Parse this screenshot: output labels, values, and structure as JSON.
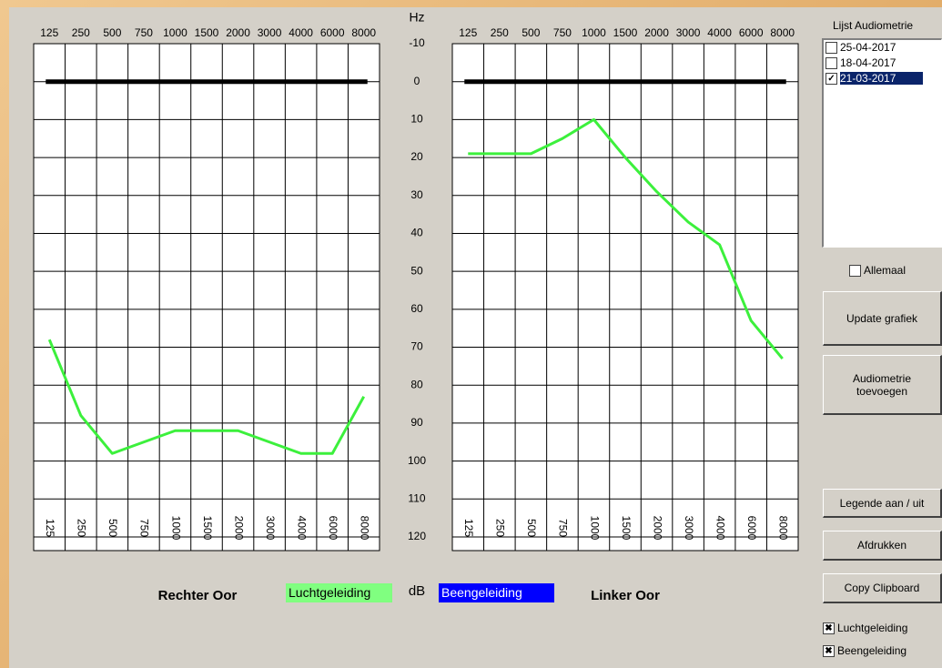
{
  "chart_data": [
    {
      "type": "line",
      "title": "Rechter Oor",
      "x_axis_label": "Hz",
      "y_axis_label": "dB",
      "categories": [
        "125",
        "250",
        "500",
        "750",
        "1000",
        "1500",
        "2000",
        "3000",
        "4000",
        "6000",
        "8000"
      ],
      "series": [
        {
          "color": "#000000",
          "values": [
            0,
            0,
            0,
            0,
            0,
            0,
            0,
            0,
            0,
            0,
            0
          ]
        },
        {
          "color": "#3cf03c",
          "values": [
            68,
            88,
            98,
            95,
            92,
            92,
            92,
            95,
            98,
            98,
            83
          ]
        }
      ],
      "ylim": [
        -10,
        120
      ],
      "yticks": [
        -10,
        0,
        10,
        20,
        30,
        40,
        50,
        60,
        70,
        80,
        90,
        100,
        110,
        120
      ],
      "y_inverted": true,
      "grid": true
    },
    {
      "type": "line",
      "title": "Linker Oor",
      "categories": [
        "125",
        "250",
        "500",
        "750",
        "1000",
        "1500",
        "2000",
        "3000",
        "4000",
        "6000",
        "8000"
      ],
      "series": [
        {
          "color": "#000000",
          "values": [
            0,
            0,
            0,
            0,
            0,
            0,
            0,
            0,
            0,
            0,
            0
          ]
        },
        {
          "color": "#3cf03c",
          "values": [
            19,
            19,
            19,
            15,
            10,
            20,
            29,
            37,
            43,
            63,
            73
          ]
        }
      ],
      "ylim": [
        -10,
        120
      ],
      "yticks": [
        -10,
        0,
        10,
        20,
        30,
        40,
        50,
        60,
        70,
        80,
        90,
        100,
        110,
        120
      ],
      "y_inverted": true,
      "grid": true
    }
  ],
  "legend": [
    {
      "label": "Luchtgeleiding",
      "color": "#80ff80",
      "text_color": "#000000"
    },
    {
      "label": "Beengeleiding",
      "color": "#0000ff",
      "text_color": "#ffffff"
    }
  ],
  "panel": {
    "list_title": "Lijst Audiometrie",
    "list_items": [
      {
        "label": "25-04-2017",
        "checked": false,
        "selected": false
      },
      {
        "label": "18-04-2017",
        "checked": false,
        "selected": false
      },
      {
        "label": "21-03-2017",
        "checked": true,
        "selected": true
      }
    ],
    "all_checkbox": {
      "label": "Allemaal",
      "checked": false
    },
    "buttons": [
      "Update grafiek",
      "Audiometrie toevoegen",
      "Legende aan / uit",
      "Afdrukken",
      "Copy Clipboard"
    ],
    "checkboxes": [
      {
        "label": "Luchtgeleiding",
        "checked": true
      },
      {
        "label": "Beengeleiding",
        "checked": true
      }
    ]
  }
}
